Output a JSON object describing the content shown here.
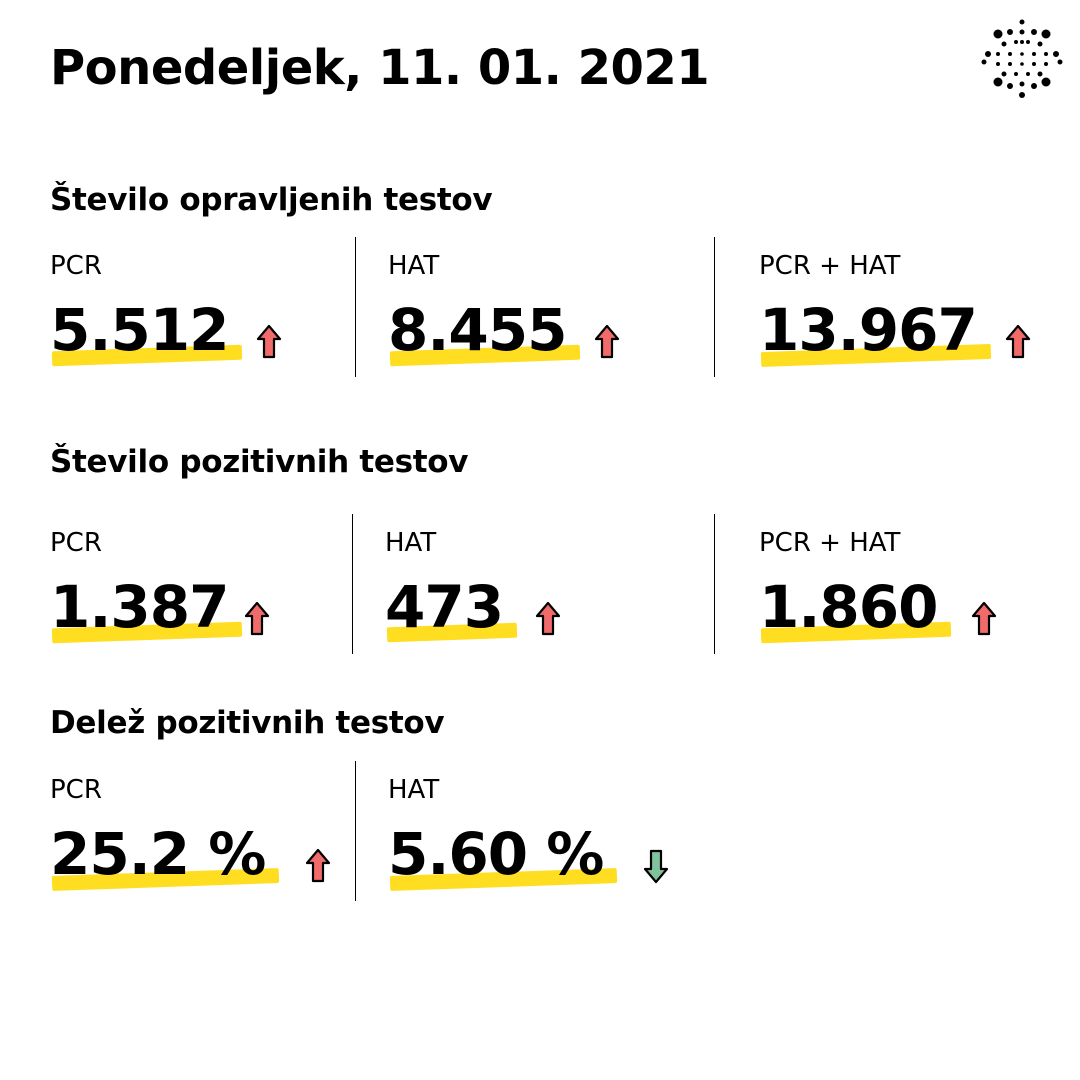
{
  "header": {
    "date_title": "Ponedeljek, 11. 01. 2021",
    "logo_icon": "dots-sphere-logo-icon"
  },
  "colors": {
    "highlight": "#ffde21",
    "arrow_up_fill": "#f26b6b",
    "arrow_down_fill": "#7fc29b",
    "text": "#000000"
  },
  "sections": [
    {
      "heading": "Število opravljenih testov",
      "stats": [
        {
          "label": "PCR",
          "value": "5.512",
          "trend": "up"
        },
        {
          "label": "HAT",
          "value": "8.455",
          "trend": "up"
        },
        {
          "label": "PCR + HAT",
          "value": "13.967",
          "trend": "up"
        }
      ]
    },
    {
      "heading": "Število pozitivnih testov",
      "stats": [
        {
          "label": "PCR",
          "value": "1.387",
          "trend": "up"
        },
        {
          "label": "HAT",
          "value": "473",
          "trend": "up"
        },
        {
          "label": "PCR + HAT",
          "value": "1.860",
          "trend": "up"
        }
      ]
    },
    {
      "heading": "Delež pozitivnih testov",
      "stats": [
        {
          "label": "PCR",
          "value": "25.2 %",
          "trend": "up"
        },
        {
          "label": "HAT",
          "value": "5.60 %",
          "trend": "down"
        }
      ]
    }
  ]
}
